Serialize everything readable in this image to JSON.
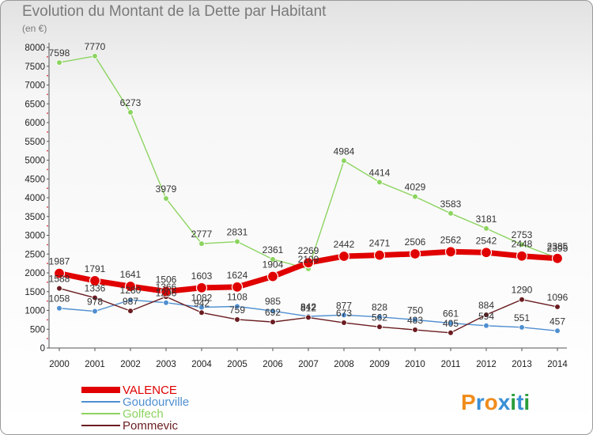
{
  "page": {
    "title": "Evolution du Montant de la Dette par Habitant",
    "unit": "(en €)",
    "logo": [
      "P",
      "r",
      "o",
      "x",
      "i",
      "t",
      "i"
    ],
    "logo_colors": [
      "#f08c1c",
      "#3a8fd6",
      "#f08c1c",
      "#3a8fd6",
      "#2a9d3a",
      "#3a8fd6",
      "#2a9d3a"
    ]
  },
  "chart_data": {
    "type": "line",
    "title": "Evolution du Montant de la Dette par Habitant",
    "ylabel": "(en €)",
    "xlabel": "",
    "x": [
      "2000",
      "2001",
      "2002",
      "2003",
      "2004",
      "2005",
      "2006",
      "2007",
      "2008",
      "2009",
      "2010",
      "2011",
      "2012",
      "2013",
      "2014"
    ],
    "ylim": [
      0,
      8000
    ],
    "yticks": [
      0,
      500,
      1000,
      1500,
      2000,
      2500,
      3000,
      3500,
      4000,
      4500,
      5000,
      5500,
      6000,
      6500,
      7000,
      7500,
      8000
    ],
    "grid": false,
    "legend_position": "bottom-left",
    "series": [
      {
        "name": "VALENCE",
        "color": "#e00000",
        "emphasis": true,
        "values": [
          1987,
          1791,
          1641,
          1506,
          1603,
          1624,
          1904,
          2269,
          2442,
          2471,
          2506,
          2562,
          2542,
          2448,
          2385
        ]
      },
      {
        "name": "Goudourville",
        "color": "#4f8fd0",
        "emphasis": false,
        "values": [
          1058,
          978,
          1280,
          1206,
          1082,
          1108,
          985,
          842,
          877,
          828,
          750,
          661,
          594,
          551,
          457
        ]
      },
      {
        "name": "Golfech",
        "color": "#8cd460",
        "emphasis": false,
        "values": [
          7598,
          7770,
          6273,
          3979,
          2777,
          2831,
          2361,
          2109,
          4984,
          4414,
          4029,
          3583,
          3181,
          2753,
          2395
        ]
      },
      {
        "name": "Pommevic",
        "color": "#6a1c20",
        "emphasis": false,
        "values": [
          1588,
          1336,
          987,
          1366,
          942,
          759,
          692,
          812,
          673,
          562,
          483,
          405,
          884,
          1290,
          1096
        ]
      }
    ]
  }
}
